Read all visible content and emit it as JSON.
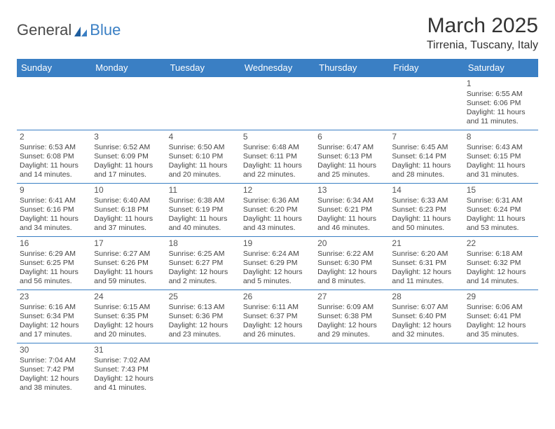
{
  "logo": {
    "word1": "General",
    "word2": "Blue"
  },
  "title": "March 2025",
  "location": "Tirrenia, Tuscany, Italy",
  "colors": {
    "header_bg": "#3a7fc4",
    "header_text": "#ffffff",
    "cell_border": "#3a7fc4",
    "text": "#444444",
    "logo_blue": "#3a7fc4"
  },
  "day_headers": [
    "Sunday",
    "Monday",
    "Tuesday",
    "Wednesday",
    "Thursday",
    "Friday",
    "Saturday"
  ],
  "weeks": [
    [
      null,
      null,
      null,
      null,
      null,
      null,
      {
        "n": "1",
        "sunrise": "6:55 AM",
        "sunset": "6:06 PM",
        "day_h": "11",
        "day_m": "11"
      }
    ],
    [
      {
        "n": "2",
        "sunrise": "6:53 AM",
        "sunset": "6:08 PM",
        "day_h": "11",
        "day_m": "14"
      },
      {
        "n": "3",
        "sunrise": "6:52 AM",
        "sunset": "6:09 PM",
        "day_h": "11",
        "day_m": "17"
      },
      {
        "n": "4",
        "sunrise": "6:50 AM",
        "sunset": "6:10 PM",
        "day_h": "11",
        "day_m": "20"
      },
      {
        "n": "5",
        "sunrise": "6:48 AM",
        "sunset": "6:11 PM",
        "day_h": "11",
        "day_m": "22"
      },
      {
        "n": "6",
        "sunrise": "6:47 AM",
        "sunset": "6:13 PM",
        "day_h": "11",
        "day_m": "25"
      },
      {
        "n": "7",
        "sunrise": "6:45 AM",
        "sunset": "6:14 PM",
        "day_h": "11",
        "day_m": "28"
      },
      {
        "n": "8",
        "sunrise": "6:43 AM",
        "sunset": "6:15 PM",
        "day_h": "11",
        "day_m": "31"
      }
    ],
    [
      {
        "n": "9",
        "sunrise": "6:41 AM",
        "sunset": "6:16 PM",
        "day_h": "11",
        "day_m": "34"
      },
      {
        "n": "10",
        "sunrise": "6:40 AM",
        "sunset": "6:18 PM",
        "day_h": "11",
        "day_m": "37"
      },
      {
        "n": "11",
        "sunrise": "6:38 AM",
        "sunset": "6:19 PM",
        "day_h": "11",
        "day_m": "40"
      },
      {
        "n": "12",
        "sunrise": "6:36 AM",
        "sunset": "6:20 PM",
        "day_h": "11",
        "day_m": "43"
      },
      {
        "n": "13",
        "sunrise": "6:34 AM",
        "sunset": "6:21 PM",
        "day_h": "11",
        "day_m": "46"
      },
      {
        "n": "14",
        "sunrise": "6:33 AM",
        "sunset": "6:23 PM",
        "day_h": "11",
        "day_m": "50"
      },
      {
        "n": "15",
        "sunrise": "6:31 AM",
        "sunset": "6:24 PM",
        "day_h": "11",
        "day_m": "53"
      }
    ],
    [
      {
        "n": "16",
        "sunrise": "6:29 AM",
        "sunset": "6:25 PM",
        "day_h": "11",
        "day_m": "56"
      },
      {
        "n": "17",
        "sunrise": "6:27 AM",
        "sunset": "6:26 PM",
        "day_h": "11",
        "day_m": "59"
      },
      {
        "n": "18",
        "sunrise": "6:25 AM",
        "sunset": "6:27 PM",
        "day_h": "12",
        "day_m": "2"
      },
      {
        "n": "19",
        "sunrise": "6:24 AM",
        "sunset": "6:29 PM",
        "day_h": "12",
        "day_m": "5"
      },
      {
        "n": "20",
        "sunrise": "6:22 AM",
        "sunset": "6:30 PM",
        "day_h": "12",
        "day_m": "8"
      },
      {
        "n": "21",
        "sunrise": "6:20 AM",
        "sunset": "6:31 PM",
        "day_h": "12",
        "day_m": "11"
      },
      {
        "n": "22",
        "sunrise": "6:18 AM",
        "sunset": "6:32 PM",
        "day_h": "12",
        "day_m": "14"
      }
    ],
    [
      {
        "n": "23",
        "sunrise": "6:16 AM",
        "sunset": "6:34 PM",
        "day_h": "12",
        "day_m": "17"
      },
      {
        "n": "24",
        "sunrise": "6:15 AM",
        "sunset": "6:35 PM",
        "day_h": "12",
        "day_m": "20"
      },
      {
        "n": "25",
        "sunrise": "6:13 AM",
        "sunset": "6:36 PM",
        "day_h": "12",
        "day_m": "23"
      },
      {
        "n": "26",
        "sunrise": "6:11 AM",
        "sunset": "6:37 PM",
        "day_h": "12",
        "day_m": "26"
      },
      {
        "n": "27",
        "sunrise": "6:09 AM",
        "sunset": "6:38 PM",
        "day_h": "12",
        "day_m": "29"
      },
      {
        "n": "28",
        "sunrise": "6:07 AM",
        "sunset": "6:40 PM",
        "day_h": "12",
        "day_m": "32"
      },
      {
        "n": "29",
        "sunrise": "6:06 AM",
        "sunset": "6:41 PM",
        "day_h": "12",
        "day_m": "35"
      }
    ],
    [
      {
        "n": "30",
        "sunrise": "7:04 AM",
        "sunset": "7:42 PM",
        "day_h": "12",
        "day_m": "38"
      },
      {
        "n": "31",
        "sunrise": "7:02 AM",
        "sunset": "7:43 PM",
        "day_h": "12",
        "day_m": "41"
      },
      null,
      null,
      null,
      null,
      null
    ]
  ],
  "labels": {
    "sunrise": "Sunrise:",
    "sunset": "Sunset:",
    "daylight1": "Daylight:",
    "hours_word": "hours",
    "and_word": "and",
    "minutes_word": "minutes."
  }
}
